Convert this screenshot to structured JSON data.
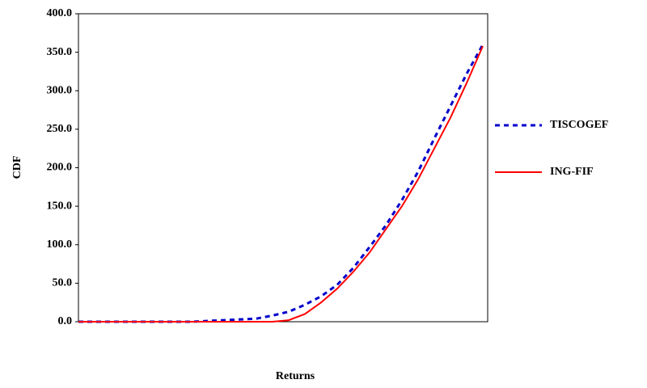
{
  "chart_data": {
    "type": "line",
    "xlabel": "Returns",
    "ylabel": "CDF",
    "categories": [
      null,
      null,
      null,
      null,
      null,
      null,
      null,
      null,
      null,
      null,
      null,
      null,
      null,
      null,
      null,
      null,
      null,
      null,
      null,
      null,
      null,
      null,
      null,
      null,
      null,
      null
    ],
    "series": [
      {
        "name": "TISCOGEF",
        "color": "#0000cc",
        "dash": true,
        "values": [
          0,
          0,
          0,
          0,
          0,
          0,
          0,
          0,
          1,
          2,
          3,
          4,
          8,
          13,
          22,
          33,
          48,
          70,
          97,
          125,
          158,
          195,
          238,
          280,
          322,
          360
        ]
      },
      {
        "name": "ING-FIF",
        "color": "#ff0000",
        "dash": false,
        "values": [
          0,
          0,
          0,
          0,
          0,
          0,
          0,
          0,
          0,
          0,
          0,
          0,
          0,
          2,
          10,
          25,
          43,
          65,
          90,
          120,
          150,
          185,
          225,
          265,
          310,
          358
        ]
      }
    ],
    "ylim": [
      0,
      400
    ],
    "yticks": [
      {
        "value": 0,
        "label": "0.0"
      },
      {
        "value": 50,
        "label": "50.0"
      },
      {
        "value": 100,
        "label": "100.0"
      },
      {
        "value": 150,
        "label": "150.0"
      },
      {
        "value": 200,
        "label": "200.0"
      },
      {
        "value": 250,
        "label": "250.0"
      },
      {
        "value": 300,
        "label": "300.0"
      },
      {
        "value": 350,
        "label": "350.0"
      },
      {
        "value": 400,
        "label": "400.0"
      }
    ],
    "legend": "right"
  }
}
